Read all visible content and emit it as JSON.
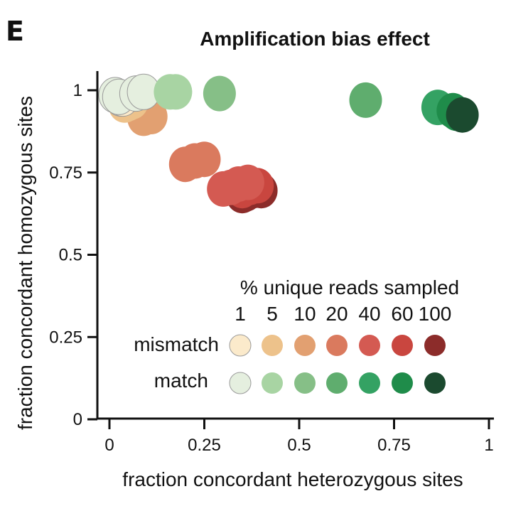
{
  "panel_label": "E",
  "chart_data": {
    "type": "scatter",
    "title": "Amplification bias effect",
    "xlabel": "fraction concordant heterozygous sites",
    "ylabel": "fraction concordant homozygous sites",
    "xlim": [
      0,
      1
    ],
    "ylim": [
      0,
      1
    ],
    "x_ticks": [
      {
        "value": 0,
        "label": "0"
      },
      {
        "value": 0.25,
        "label": "0.25"
      },
      {
        "value": 0.5,
        "label": "0.5"
      },
      {
        "value": 0.75,
        "label": "0.75"
      },
      {
        "value": 1,
        "label": "1"
      }
    ],
    "y_ticks": [
      {
        "value": 0,
        "label": "0"
      },
      {
        "value": 0.25,
        "label": "0.25"
      },
      {
        "value": 0.5,
        "label": "0.5"
      },
      {
        "value": 0.75,
        "label": "0.75"
      },
      {
        "value": 1,
        "label": "1"
      }
    ],
    "grid": false,
    "legend": {
      "title": "% unique reads sampled",
      "levels": [
        "1",
        "5",
        "10",
        "20",
        "40",
        "60",
        "100"
      ],
      "placement": "bottom-right",
      "rows": [
        {
          "name": "mismatch",
          "colors": [
            "#fbeacb",
            "#edc28b",
            "#e2a071",
            "#da7a5e",
            "#d45a52",
            "#c9463f",
            "#8c2c2a"
          ]
        },
        {
          "name": "match",
          "colors": [
            "#e5efdf",
            "#a8d4a3",
            "#86bf87",
            "#5fad6e",
            "#34a263",
            "#1f8c4a",
            "#1b4a2f"
          ]
        }
      ]
    },
    "series": [
      {
        "name": "mismatch",
        "level": "100",
        "color": "#8c2c2a",
        "points": [
          {
            "x": 0.36,
            "y": 0.685
          },
          {
            "x": 0.38,
            "y": 0.695
          },
          {
            "x": 0.4,
            "y": 0.695
          },
          {
            "x": 0.35,
            "y": 0.68
          }
        ]
      },
      {
        "name": "mismatch",
        "level": "60",
        "color": "#c9463f",
        "points": [
          {
            "x": 0.35,
            "y": 0.695
          },
          {
            "x": 0.37,
            "y": 0.705
          },
          {
            "x": 0.39,
            "y": 0.71
          }
        ]
      },
      {
        "name": "mismatch",
        "level": "40",
        "color": "#d45a52",
        "points": [
          {
            "x": 0.32,
            "y": 0.705
          },
          {
            "x": 0.34,
            "y": 0.715
          },
          {
            "x": 0.365,
            "y": 0.72
          },
          {
            "x": 0.3,
            "y": 0.7
          }
        ]
      },
      {
        "name": "mismatch",
        "level": "20",
        "color": "#da7a5e",
        "points": [
          {
            "x": 0.2,
            "y": 0.775
          },
          {
            "x": 0.225,
            "y": 0.785
          },
          {
            "x": 0.25,
            "y": 0.79
          }
        ]
      },
      {
        "name": "mismatch",
        "level": "10",
        "color": "#e2a071",
        "points": [
          {
            "x": 0.09,
            "y": 0.915
          },
          {
            "x": 0.1,
            "y": 0.92
          },
          {
            "x": 0.11,
            "y": 0.92
          }
        ]
      },
      {
        "name": "mismatch",
        "level": "5",
        "color": "#edc28b",
        "points": [
          {
            "x": 0.04,
            "y": 0.955
          },
          {
            "x": 0.05,
            "y": 0.96
          },
          {
            "x": 0.06,
            "y": 0.965
          }
        ]
      },
      {
        "name": "mismatch",
        "level": "1",
        "color": "#fbeacb",
        "points": [
          {
            "x": 0.03,
            "y": 0.975
          },
          {
            "x": 0.035,
            "y": 0.975
          }
        ]
      },
      {
        "name": "match",
        "level": "1",
        "color": "#e5efdf",
        "points": [
          {
            "x": 0.015,
            "y": 0.985
          },
          {
            "x": 0.025,
            "y": 0.98
          },
          {
            "x": 0.07,
            "y": 0.99
          },
          {
            "x": 0.09,
            "y": 0.995
          }
        ]
      },
      {
        "name": "match",
        "level": "5",
        "color": "#a8d4a3",
        "points": [
          {
            "x": 0.16,
            "y": 0.995
          },
          {
            "x": 0.175,
            "y": 0.995
          }
        ]
      },
      {
        "name": "match",
        "level": "10",
        "color": "#86bf87",
        "points": [
          {
            "x": 0.29,
            "y": 0.99
          }
        ]
      },
      {
        "name": "match",
        "level": "20",
        "color": "#5fad6e",
        "points": [
          {
            "x": 0.675,
            "y": 0.97
          }
        ]
      },
      {
        "name": "match",
        "level": "40",
        "color": "#34a263",
        "points": [
          {
            "x": 0.865,
            "y": 0.948
          }
        ]
      },
      {
        "name": "match",
        "level": "60",
        "color": "#1f8c4a",
        "points": [
          {
            "x": 0.905,
            "y": 0.938
          },
          {
            "x": 0.915,
            "y": 0.93
          }
        ]
      },
      {
        "name": "match",
        "level": "100",
        "color": "#1b4a2f",
        "points": [
          {
            "x": 0.93,
            "y": 0.925
          }
        ]
      }
    ]
  }
}
